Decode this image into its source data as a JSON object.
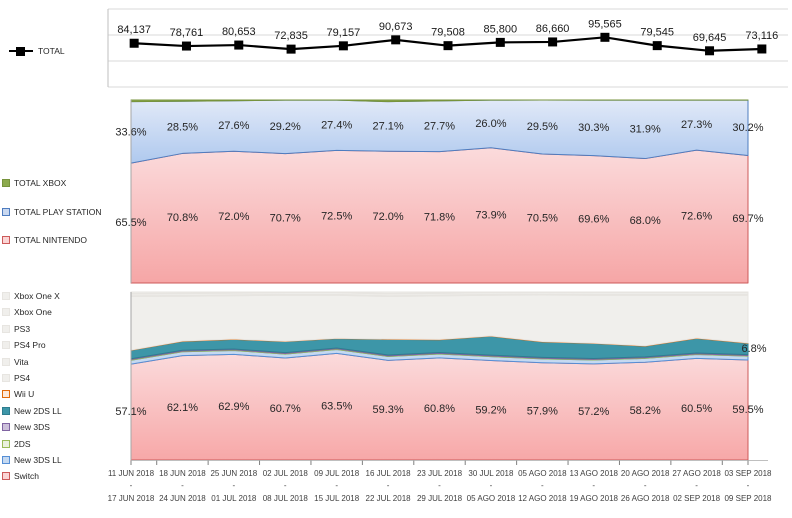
{
  "chart_data": [
    {
      "id": "total-weekly-units",
      "type": "line",
      "legend": [
        {
          "label": "TOTAL",
          "color": "#000000"
        }
      ],
      "values": [
        84137,
        78761,
        80653,
        72835,
        79157,
        90673,
        79508,
        85800,
        86660,
        95565,
        79545,
        69645,
        73116
      ],
      "ylim": [
        0,
        150000
      ],
      "grid": true,
      "marker": "square",
      "line_color": "#000000"
    },
    {
      "id": "brand-share-percent",
      "type": "area_stacked_percent",
      "ylim": [
        0,
        100
      ],
      "series": [
        {
          "name": "TOTAL NINTENDO",
          "values": [
            65.5,
            70.8,
            72.0,
            70.7,
            72.5,
            72.0,
            71.8,
            73.9,
            70.5,
            69.6,
            68.0,
            72.6,
            69.7
          ],
          "fill": [
            "#FBDBDC",
            "#F6A6A6"
          ],
          "stroke": "#CC5A5A",
          "swatch": "#FBD5D5",
          "labels": "all"
        },
        {
          "name": "TOTAL PLAY STATION",
          "values": [
            33.6,
            28.5,
            27.6,
            29.2,
            27.4,
            27.1,
            27.7,
            26.0,
            29.5,
            30.3,
            31.9,
            27.3,
            30.2
          ],
          "fill": [
            "#E1E9F8",
            "#AFC9EE"
          ],
          "stroke": "#4E7CBF",
          "swatch": "#C9D8F0",
          "labels": "all"
        },
        {
          "name": "TOTAL XBOX",
          "values": [
            0.9,
            0.7,
            0.4,
            0.1,
            0.1,
            0.9,
            0.5,
            0.1,
            0.0,
            0.1,
            0.1,
            0.1,
            0.1
          ],
          "fill": [
            "#8CAA4E",
            "#8CAA4E"
          ],
          "stroke": "#77933C",
          "swatch": "#8CAA4E",
          "labels": "none"
        }
      ]
    },
    {
      "id": "platform-share-percent",
      "type": "area_stacked_percent",
      "ylim": [
        0,
        100
      ],
      "series": [
        {
          "name": "Switch",
          "values": [
            57.1,
            62.1,
            62.9,
            60.7,
            63.5,
            59.3,
            60.8,
            59.2,
            57.9,
            57.2,
            58.2,
            60.5,
            59.5
          ],
          "fill": [
            "#FBDBDC",
            "#F7A8A8"
          ],
          "stroke": "#CC5A5A",
          "swatch": "#FBD5D5",
          "labels": "all"
        },
        {
          "name": "New 3DS LL",
          "values": [
            2.3,
            2.3,
            2.3,
            2.3,
            2.3,
            2.3,
            2.3,
            2.3,
            2.3,
            2.3,
            2.3,
            2.3,
            2.3
          ],
          "fill": [
            "#C5D9F1",
            "#C5D9F1"
          ],
          "stroke": "#558ED5",
          "swatch": "#C5D9F1",
          "labels": "none"
        },
        {
          "name": "2DS",
          "values": [
            0.4,
            0.4,
            0.4,
            0.4,
            0.4,
            0.4,
            0.4,
            0.4,
            0.4,
            0.4,
            0.4,
            0.4,
            0.4
          ],
          "fill": [
            "#EBF1DE",
            "#EBF1DE"
          ],
          "stroke": "#9BBB59",
          "swatch": "#EBF1DE",
          "labels": "none"
        },
        {
          "name": "New 3DS",
          "values": [
            0.5,
            0.5,
            0.5,
            0.5,
            0.5,
            0.5,
            0.5,
            0.5,
            0.5,
            0.5,
            0.5,
            0.5,
            0.5
          ],
          "fill": [
            "#CCC0DA",
            "#CCC0DA"
          ],
          "stroke": "#8064A2",
          "swatch": "#CCC0DA",
          "labels": "none"
        },
        {
          "name": "New 2DS LL",
          "values": [
            5.0,
            5.3,
            5.7,
            6.6,
            5.6,
            9.3,
            7.6,
            11.3,
            9.2,
            9.0,
            6.4,
            8.7,
            6.8
          ],
          "fill": [
            "#3D96A8",
            "#3D96A8"
          ],
          "stroke": "#2E7D8F",
          "swatch": "#3D96A8",
          "labels": "last"
        },
        {
          "name": "Wii U",
          "values": [
            0.2,
            0.2,
            0.2,
            0.2,
            0.2,
            0.2,
            0.2,
            0.2,
            0.2,
            0.2,
            0.2,
            0.2,
            0.2
          ],
          "fill": [
            "#FDE9D9",
            "#FDE9D9"
          ],
          "stroke": "#E26B0A",
          "swatch": "#FDE9D9",
          "labels": "none"
        },
        {
          "name": "PS4",
          "values": [
            31.8,
            26.7,
            25.8,
            27.4,
            25.6,
            25.3,
            25.9,
            24.2,
            27.7,
            28.5,
            30.1,
            25.5,
            28.4
          ],
          "fill": [
            "#F0EFEC",
            "#F0EFEC"
          ],
          "stroke": "#E7E5E1",
          "swatch": "#F0EFEC",
          "labels": "none"
        },
        {
          "name": "Vita",
          "values": [
            0.5,
            0.5,
            0.5,
            0.5,
            0.5,
            0.5,
            0.5,
            0.5,
            0.5,
            0.5,
            0.5,
            0.5,
            0.5
          ],
          "fill": [
            "#F0EFEC",
            "#F0EFEC"
          ],
          "stroke": "#E7E5E1",
          "swatch": "#F0EFEC",
          "labels": "none"
        },
        {
          "name": "PS4 Pro",
          "values": [
            1.0,
            1.0,
            1.0,
            1.0,
            1.0,
            1.0,
            1.0,
            1.0,
            1.0,
            1.0,
            1.0,
            1.0,
            1.0
          ],
          "fill": [
            "#F0EFEC",
            "#F0EFEC"
          ],
          "stroke": "#E7E5E1",
          "swatch": "#F0EFEC",
          "labels": "none"
        },
        {
          "name": "PS3",
          "values": [
            0.3,
            0.3,
            0.3,
            0.3,
            0.3,
            0.3,
            0.3,
            0.3,
            0.3,
            0.3,
            0.3,
            0.3,
            0.3
          ],
          "fill": [
            "#F0EFEC",
            "#F0EFEC"
          ],
          "stroke": "#E7E5E1",
          "swatch": "#F0EFEC",
          "labels": "none"
        },
        {
          "name": "Xbox One",
          "values": [
            0.9,
            0.7,
            0.4,
            0.1,
            0.1,
            0.9,
            0.5,
            0.1,
            0.0,
            0.1,
            0.1,
            0.1,
            0.1
          ],
          "fill": [
            "#F0EFEC",
            "#F0EFEC"
          ],
          "stroke": "#E7E5E1",
          "swatch": "#F0EFEC",
          "labels": "none"
        },
        {
          "name": "Xbox One X",
          "values": [
            0,
            0,
            0,
            0,
            0,
            0,
            0,
            0,
            0,
            0,
            0,
            0,
            0
          ],
          "fill": [
            "#F0EFEC",
            "#F0EFEC"
          ],
          "stroke": "#E7E5E1",
          "swatch": "#F0EFEC",
          "labels": "none"
        }
      ]
    }
  ],
  "x_axis": {
    "separator": "-",
    "row1": [
      "11 JUN 2018",
      "18 JUN 2018",
      "25 JUN 2018",
      "02 JUL 2018",
      "09 JUL 2018",
      "16 JUL 2018",
      "23 JUL 2018",
      "30 JUL 2018",
      "05 AGO 2018",
      "13 AGO 2018",
      "20 AGO 2018",
      "27 AGO 2018",
      "03 SEP 2018"
    ],
    "row2": [
      "17 JUN 2018",
      "24 JUN 2018",
      "01 JUL 2018",
      "08 JUL 2018",
      "15 JUL 2018",
      "22 JUL 2018",
      "29 JUL 2018",
      "05 AGO 2018",
      "12 AGO 2018",
      "19 AGO 2018",
      "26 AGO 2018",
      "02 SEP 2018",
      "09 SEP 2018"
    ]
  }
}
